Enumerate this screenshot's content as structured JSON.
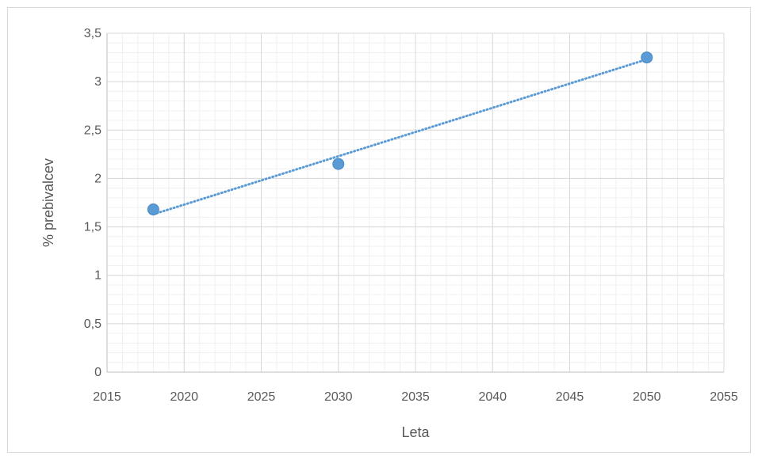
{
  "chart_data": {
    "type": "scatter",
    "title": "",
    "xlabel": "Leta",
    "ylabel": "% prebivalcev",
    "xlim": [
      2015,
      2055
    ],
    "ylim": [
      0,
      3.5
    ],
    "x_ticks": [
      "2015",
      "2020",
      "2025",
      "2030",
      "2035",
      "2040",
      "2045",
      "2050",
      "2055"
    ],
    "y_ticks": [
      "0",
      "0,5",
      "1",
      "1,5",
      "2",
      "2,5",
      "3",
      "3,5"
    ],
    "grid": "major and minor",
    "legend": "none",
    "series": [
      {
        "x": [
          2018,
          2030,
          2050
        ],
        "values": [
          1.68,
          2.15,
          3.25
        ],
        "marker_color": "#5b9bd5"
      }
    ],
    "trendline": {
      "type": "linear",
      "style": "dotted",
      "color": "#5b9bd5",
      "x": [
        2018,
        2050
      ],
      "values": [
        1.63,
        3.23
      ]
    }
  }
}
